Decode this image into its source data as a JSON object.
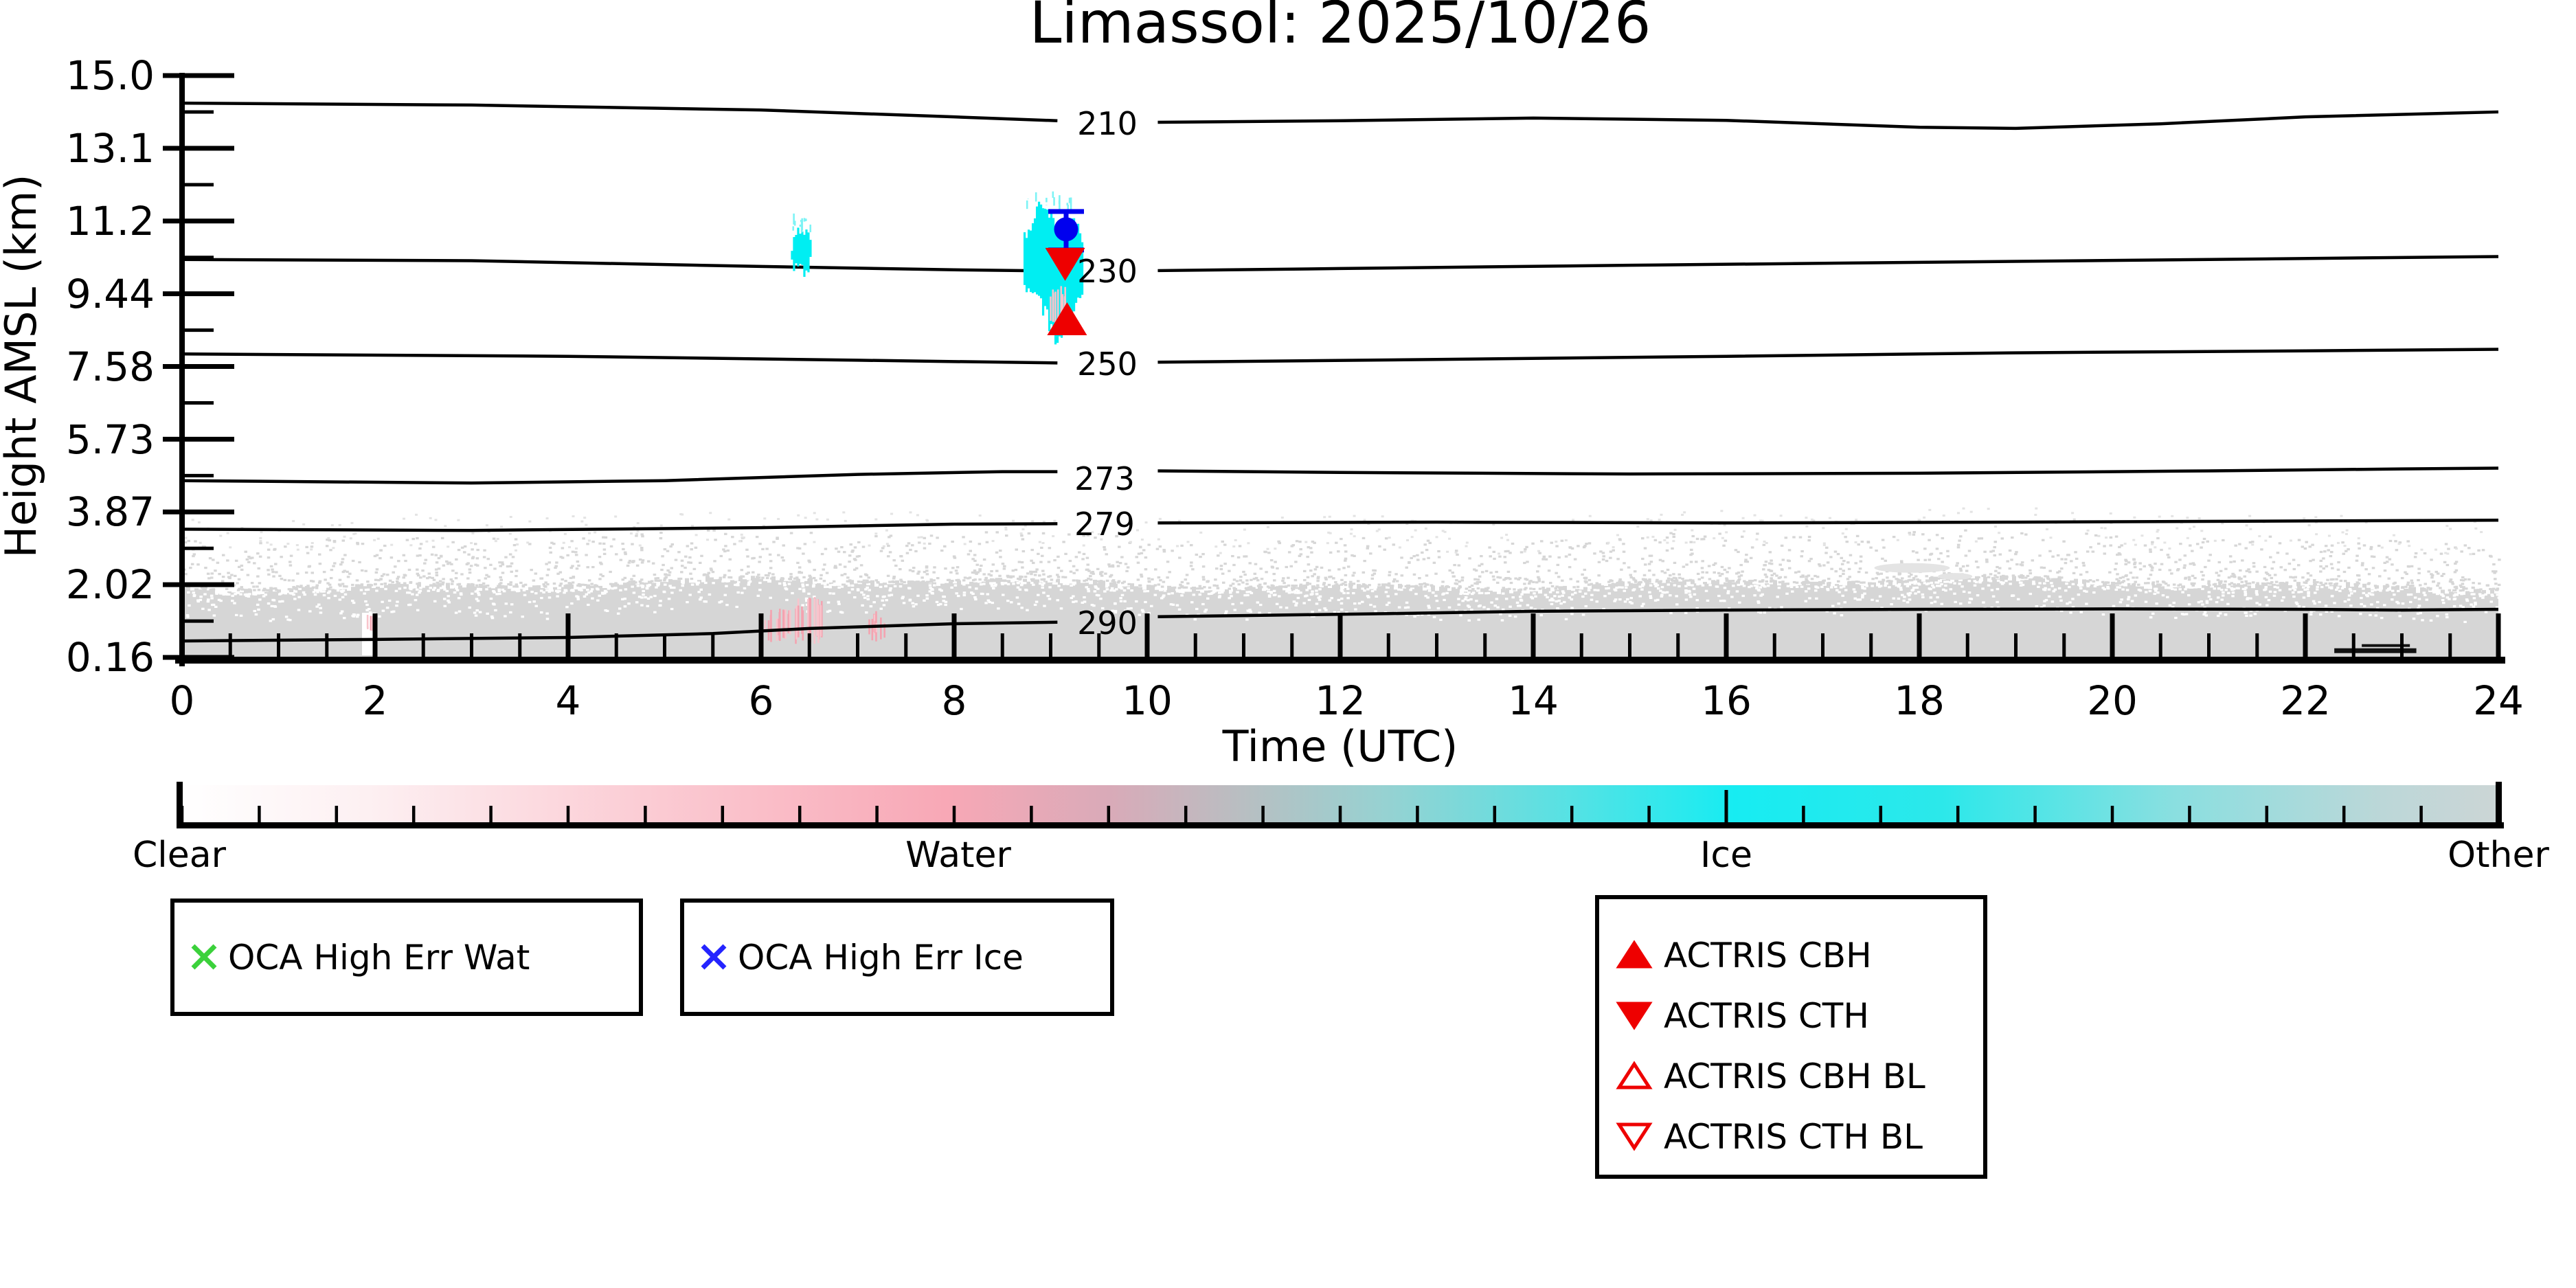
{
  "title": "Limassol: 2025/10/26",
  "colors": {
    "ice": "#00eef2",
    "ice_faint": "#7df3f5",
    "water_pink": "#f4a3b0",
    "water_pink_light": "#f8c4cc",
    "other_band": "#d6d6d6",
    "band_speckle_faint": "#e3e3e3",
    "contour": "#000000",
    "oca_point": "#0000ee",
    "actris_red": "#ee0000",
    "oca_wat_x": "#3bd13b",
    "oca_ice_x": "#2424ff",
    "dark_streak": "#111111",
    "faint_patch": "#e4e4e4"
  },
  "colorbar": {
    "labels": [
      "Clear",
      "Water",
      "Ice",
      "Other"
    ],
    "gradient": [
      [
        "0%",
        "#ffffff"
      ],
      [
        "8%",
        "#fdf0f2"
      ],
      [
        "20%",
        "#fbccd4"
      ],
      [
        "33%",
        "#f8a8b6"
      ],
      [
        "40%",
        "#d9aab8"
      ],
      [
        "46%",
        "#b7bfc2"
      ],
      [
        "52%",
        "#96d2d2"
      ],
      [
        "60%",
        "#55e2e4"
      ],
      [
        "67%",
        "#17ecf2"
      ],
      [
        "76%",
        "#2ce8ea"
      ],
      [
        "86%",
        "#8adfe0"
      ],
      [
        "95%",
        "#bcd7d8"
      ],
      [
        "100%",
        "#ccd6d6"
      ]
    ]
  },
  "legends": {
    "oca_wat": {
      "marker": "x-icon",
      "label": "OCA High Err Wat"
    },
    "oca_ice": {
      "marker": "x-icon",
      "label": "OCA High Err Ice"
    },
    "actris": {
      "items": [
        {
          "marker": "triangle-up-filled",
          "label": "ACTRIS CBH"
        },
        {
          "marker": "triangle-down-filled",
          "label": "ACTRIS CTH"
        },
        {
          "marker": "triangle-up-open",
          "label": "ACTRIS CBH BL"
        },
        {
          "marker": "triangle-down-open",
          "label": "ACTRIS CTH BL"
        }
      ]
    }
  },
  "chart_data": {
    "type": "heatmap",
    "title": "Limassol: 2025/10/26",
    "xlabel": "Time (UTC)",
    "ylabel": "Height AMSL (km)",
    "xlim": [
      0,
      24
    ],
    "x_ticks": [
      "0",
      "2",
      "4",
      "6",
      "8",
      "10",
      "12",
      "14",
      "16",
      "18",
      "20",
      "22",
      "24"
    ],
    "x_minor_step_hours": 0.5,
    "y_ticks_km": [
      "15.0",
      "13.1",
      "11.2",
      "9.44",
      "7.58",
      "5.73",
      "3.87",
      "2.02",
      "0.16"
    ],
    "colorbar_categories": [
      "Clear",
      "Water",
      "Ice",
      "Other"
    ],
    "contours": [
      {
        "label": "210",
        "level_K": 210,
        "points": [
          [
            0,
            14.28
          ],
          [
            3,
            14.23
          ],
          [
            6,
            14.1
          ],
          [
            8,
            13.92
          ],
          [
            9.07,
            13.82
          ],
          [
            10.11,
            13.78
          ],
          [
            12,
            13.82
          ],
          [
            14,
            13.89
          ],
          [
            16,
            13.83
          ],
          [
            18,
            13.65
          ],
          [
            19,
            13.62
          ],
          [
            20.5,
            13.74
          ],
          [
            22,
            13.92
          ],
          [
            24,
            14.05
          ]
        ]
      },
      {
        "label": "230",
        "level_K": 230,
        "points": [
          [
            0,
            10.27
          ],
          [
            3,
            10.24
          ],
          [
            6,
            10.1
          ],
          [
            8,
            10.02
          ],
          [
            9.07,
            9.99
          ],
          [
            10.11,
            10.0
          ],
          [
            12,
            10.05
          ],
          [
            15,
            10.13
          ],
          [
            18,
            10.2
          ],
          [
            21,
            10.27
          ],
          [
            24,
            10.34
          ]
        ]
      },
      {
        "label": "250",
        "level_K": 250,
        "points": [
          [
            0,
            7.9
          ],
          [
            4,
            7.84
          ],
          [
            7,
            7.74
          ],
          [
            9.07,
            7.67
          ],
          [
            10.11,
            7.69
          ],
          [
            13,
            7.76
          ],
          [
            16,
            7.84
          ],
          [
            19,
            7.93
          ],
          [
            22,
            7.98
          ],
          [
            24,
            8.02
          ]
        ]
      },
      {
        "label": "273",
        "level_K": 273,
        "points": [
          [
            0,
            4.67
          ],
          [
            3,
            4.61
          ],
          [
            5,
            4.67
          ],
          [
            7,
            4.83
          ],
          [
            8.5,
            4.9
          ],
          [
            9.07,
            4.9
          ],
          [
            10.11,
            4.92
          ],
          [
            12,
            4.88
          ],
          [
            15,
            4.84
          ],
          [
            18,
            4.86
          ],
          [
            21,
            4.92
          ],
          [
            23,
            4.97
          ],
          [
            24,
            4.99
          ]
        ]
      },
      {
        "label": "279",
        "level_K": 279,
        "points": [
          [
            0,
            3.43
          ],
          [
            3,
            3.4
          ],
          [
            6,
            3.47
          ],
          [
            8,
            3.56
          ],
          [
            9.07,
            3.57
          ],
          [
            10.11,
            3.59
          ],
          [
            13,
            3.61
          ],
          [
            16,
            3.59
          ],
          [
            19,
            3.61
          ],
          [
            22,
            3.64
          ],
          [
            24,
            3.66
          ]
        ]
      },
      {
        "label": "290",
        "level_K": 290,
        "points": [
          [
            0,
            0.58
          ],
          [
            2,
            0.62
          ],
          [
            4,
            0.67
          ],
          [
            5.5,
            0.77
          ],
          [
            6.5,
            0.9
          ],
          [
            8,
            1.02
          ],
          [
            9.07,
            1.06
          ],
          [
            10.11,
            1.2
          ],
          [
            11,
            1.23
          ],
          [
            12.5,
            1.28
          ],
          [
            14,
            1.34
          ],
          [
            16,
            1.37
          ],
          [
            18,
            1.39
          ],
          [
            20,
            1.4
          ],
          [
            22,
            1.39
          ],
          [
            23,
            1.37
          ],
          [
            24,
            1.39
          ]
        ]
      }
    ],
    "contour_label_gap_hours": [
      9.07,
      10.11
    ],
    "clouds": [
      {
        "phase": "ice",
        "name": "main-ice-plume",
        "envelope": [
          [
            8.73,
            10.75,
            9.55
          ],
          [
            8.8,
            11.05,
            9.4
          ],
          [
            8.87,
            11.6,
            9.3
          ],
          [
            8.95,
            11.35,
            8.95
          ],
          [
            9.03,
            11.15,
            8.35
          ],
          [
            9.12,
            11.05,
            8.3
          ],
          [
            9.19,
            11.15,
            8.65
          ],
          [
            9.26,
            11.1,
            8.95
          ],
          [
            9.33,
            10.8,
            9.5
          ]
        ]
      },
      {
        "phase": "ice",
        "name": "small-ice-blob",
        "envelope": [
          [
            6.32,
            10.55,
            10.15
          ],
          [
            6.37,
            10.85,
            10.05
          ],
          [
            6.41,
            10.95,
            10.0
          ],
          [
            6.45,
            11.05,
            9.95
          ],
          [
            6.49,
            10.9,
            10.02
          ],
          [
            6.53,
            10.55,
            10.25
          ]
        ]
      },
      {
        "phase": "water",
        "name": "pink-in-plume",
        "t": [
          8.99,
          9.17
        ],
        "km": [
          8.55,
          9.65
        ],
        "n": 10
      },
      {
        "phase": "water",
        "name": "low-water-1",
        "t": [
          6.04,
          6.31
        ],
        "km": [
          0.55,
          1.45
        ],
        "n": 16
      },
      {
        "phase": "water",
        "name": "low-water-2",
        "t": [
          6.35,
          6.63
        ],
        "km": [
          0.5,
          1.7
        ],
        "n": 18
      },
      {
        "phase": "water",
        "name": "low-water-3",
        "t": [
          7.12,
          7.32
        ],
        "km": [
          0.55,
          1.35
        ],
        "n": 9
      },
      {
        "phase": "water",
        "name": "low-water-4",
        "t": [
          1.87,
          2.0
        ],
        "km": [
          0.8,
          1.25
        ],
        "n": 8
      }
    ],
    "markers": [
      {
        "name": "oca-retrieval-point",
        "t": 9.16,
        "km": 11.0,
        "err_km": [
          10.5,
          11.45
        ]
      },
      {
        "name": "actris-cth",
        "t": 9.15,
        "km": 10.15
      },
      {
        "name": "actris-cbh",
        "t": 9.17,
        "km": 8.8
      }
    ],
    "boundary_layer": {
      "top_km": 2.05,
      "base_km": 0.16,
      "category": "Other"
    },
    "dark_streak": {
      "t": [
        22.3,
        23.15
      ],
      "km": [
        0.72,
        0.85
      ]
    },
    "faint_patch": {
      "t": [
        17.55,
        18.3
      ],
      "km": [
        2.3,
        2.55
      ]
    }
  }
}
